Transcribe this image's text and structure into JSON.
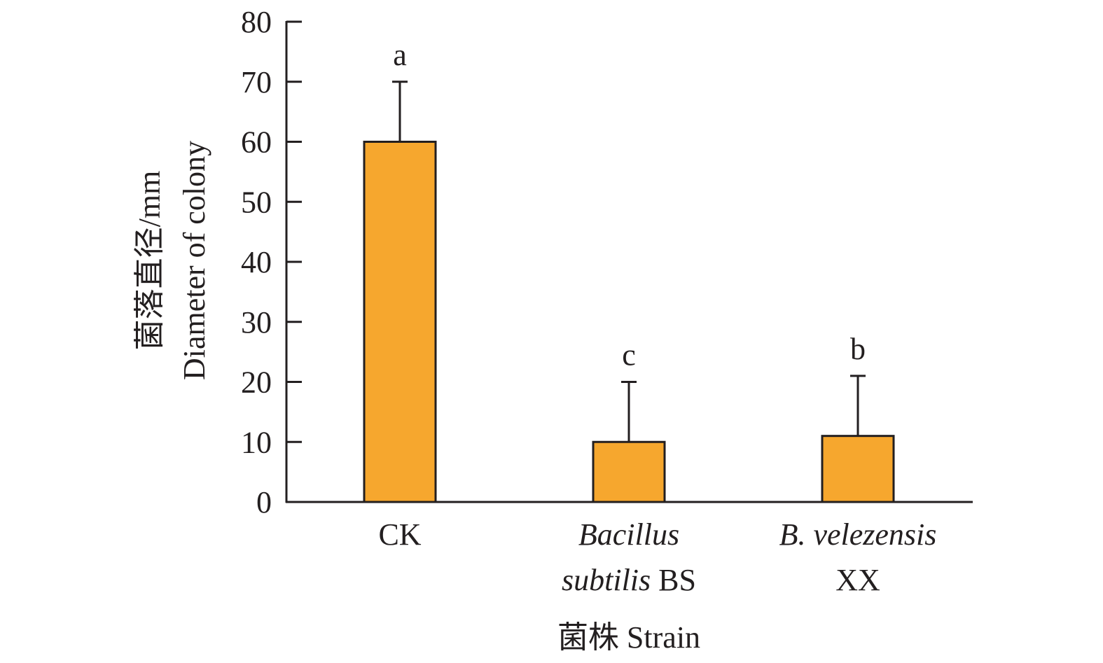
{
  "chart_data": {
    "type": "bar",
    "title": "",
    "categories": [
      "CK",
      "Bacillus subtilis BS",
      "B. velezensis XX"
    ],
    "category_labels": [
      [
        [
          {
            "text": "CK",
            "italic": false
          }
        ]
      ],
      [
        [
          {
            "text": "Bacillus",
            "italic": true
          }
        ],
        [
          {
            "text": "subtilis",
            "italic": true
          },
          {
            "text": " BS",
            "italic": false
          }
        ]
      ],
      [
        [
          {
            "text": "B. velezensis",
            "italic": true
          }
        ],
        [
          {
            "text": "XX",
            "italic": false
          }
        ]
      ]
    ],
    "values": [
      60,
      10,
      11
    ],
    "error_upper": [
      70,
      20,
      21
    ],
    "significance_letters": [
      "a",
      "c",
      "b"
    ],
    "ylim": [
      0,
      80
    ],
    "yticks": [
      0,
      10,
      20,
      30,
      40,
      50,
      60,
      70,
      80
    ],
    "ylabel_lines": [
      "菌落直径/mm",
      "Diameter of colony"
    ],
    "xlabel": "菌株 Strain",
    "grid": false,
    "bar_color": "#f6a72e",
    "edge_color": "#231f20"
  }
}
